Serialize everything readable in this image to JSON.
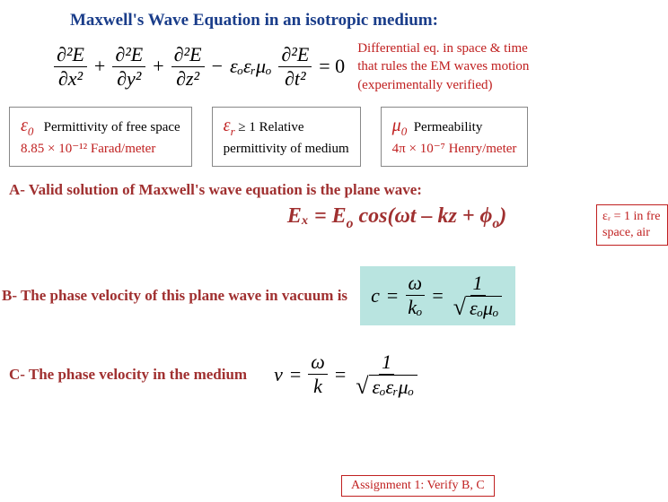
{
  "title": "Maxwell's Wave Equation in an isotropic medium:",
  "main_eq": {
    "term1_num": "∂²E",
    "term1_den": "∂x²",
    "term2_num": "∂²E",
    "term2_den": "∂y²",
    "term3_num": "∂²E",
    "term3_den": "∂z²",
    "coef": "εₒεᵣμₒ",
    "term4_num": "∂²E",
    "term4_den": "∂t²",
    "rhs": "= 0",
    "note_l1": "Differential eq. in space & time",
    "note_l2": "that rules the EM waves motion",
    "note_l3": "(experimentally verified)"
  },
  "consts": {
    "eps0_sym": "ε",
    "eps0_sub": "0",
    "eps0_label": "Permittivity of free space",
    "eps0_value": "8.85 × 10⁻¹²  Farad/meter",
    "epsr_sym": "ε",
    "epsr_sub": "r",
    "epsr_rel": " ≥ 1  Relative",
    "epsr_label": "permittivity of medium",
    "mu0_sym": "μ",
    "mu0_sub": "0",
    "mu0_label": "Permeability",
    "mu0_value": "4π × 10⁻⁷  Henry/meter"
  },
  "section_a": "A- Valid solution of Maxwell's wave equation is the plane wave:",
  "plane_wave_lhs": "Eₓ = E",
  "plane_wave_sub": "o",
  "plane_wave_rhs": " cos(ωt – kz + ϕ",
  "plane_wave_phi_sub": "o",
  "plane_wave_close": ")",
  "note_box_l1": "εᵣ = 1 in fre",
  "note_box_l2": "space, air",
  "section_b": "B- The phase velocity of this plane wave in vacuum is",
  "c_sym": "c",
  "eq_sign": "=",
  "omega": "ω",
  "k_o": "kₒ",
  "one": "1",
  "sqrt_c": "εₒμₒ",
  "section_c": "C- The phase velocity in the medium",
  "v_sym": "v",
  "k": "k",
  "sqrt_v": "εₒεᵣμₒ",
  "assignment": "Assignment 1: Verify B, C",
  "colors": {
    "title": "#1a3d8a",
    "red": "#c02020",
    "maroon": "#a03030",
    "teal_bg": "#b9e4e0",
    "border": "#888888"
  }
}
